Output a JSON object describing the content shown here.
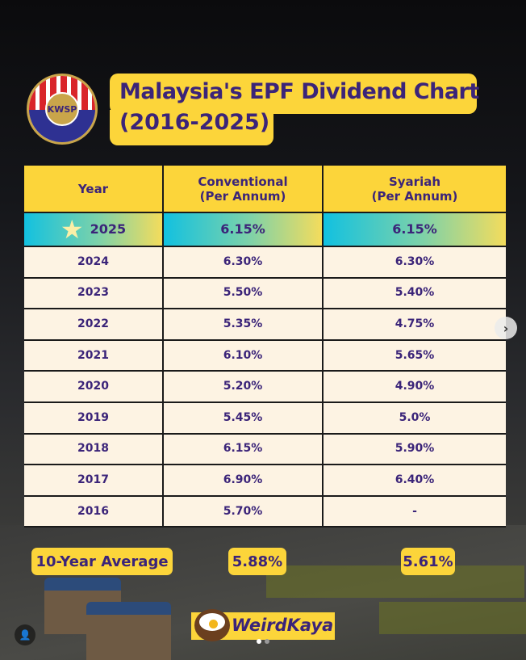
{
  "title_line1": "Malaysia's EPF Dividend Chart",
  "title_line2": "(2016-2025)",
  "logo_text": "KWSP",
  "chart_data": {
    "type": "table",
    "title": "Malaysia's EPF Dividend Chart (2016-2025)",
    "columns": [
      "Year",
      "Conventional\n(Per Annum)",
      "Syariah\n(Per Annum)"
    ],
    "rows": [
      [
        "2025",
        "6.15%",
        "6.15%"
      ],
      [
        "2024",
        "6.30%",
        "6.30%"
      ],
      [
        "2023",
        "5.50%",
        "5.40%"
      ],
      [
        "2022",
        "5.35%",
        "4.75%"
      ],
      [
        "2021",
        "6.10%",
        "5.65%"
      ],
      [
        "2020",
        "5.20%",
        "4.90%"
      ],
      [
        "2019",
        "5.45%",
        "5.0%"
      ],
      [
        "2018",
        "6.15%",
        "5.90%"
      ],
      [
        "2017",
        "6.90%",
        "6.40%"
      ],
      [
        "2016",
        "5.70%",
        "-"
      ]
    ],
    "highlight_row": 0
  },
  "average": {
    "label": "10-Year Average",
    "conventional": "5.88%",
    "syariah": "5.61%"
  },
  "brand": "WeirdKaya",
  "colors": {
    "accent": "#fcd53a",
    "text": "#3b2479",
    "row_bg": "#fdf3e3"
  },
  "carousel": {
    "slides": 2,
    "current": 1
  }
}
